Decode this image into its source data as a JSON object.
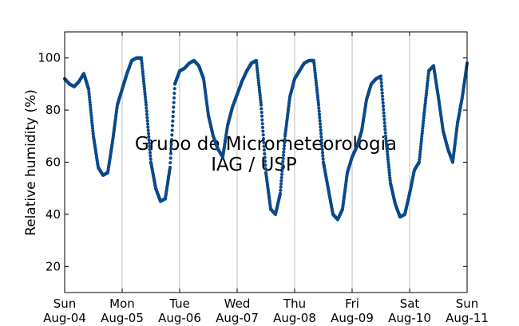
{
  "chart_data": {
    "type": "scatter",
    "title": "",
    "xlabel": "",
    "ylabel": "Relative humidity (%)",
    "watermark": [
      "Grupo de Micrometeorologia",
      "IAG / USP"
    ],
    "xlim": [
      "2019-08-04T00:00",
      "2019-08-11T00:00"
    ],
    "ylim": [
      10,
      110
    ],
    "y_ticks": [
      20,
      40,
      60,
      80,
      100
    ],
    "x_ticks": [
      {
        "day": "Sun",
        "date": "Aug-04"
      },
      {
        "day": "Mon",
        "date": "Aug-05"
      },
      {
        "day": "Tue",
        "date": "Aug-06"
      },
      {
        "day": "Wed",
        "date": "Aug-07"
      },
      {
        "day": "Thu",
        "date": "Aug-08"
      },
      {
        "day": "Fri",
        "date": "Aug-09"
      },
      {
        "day": "Sat",
        "date": "Aug-10"
      },
      {
        "day": "Sun",
        "date": "Aug-11"
      }
    ],
    "grid": "vertical",
    "marker_color": "#0a4a8a",
    "series": [
      {
        "x": [
          "2019-08-04T00:00",
          "2019-08-04T02:00",
          "2019-08-04T04:00",
          "2019-08-04T06:00",
          "2019-08-04T08:00",
          "2019-08-04T10:00",
          "2019-08-04T12:00",
          "2019-08-04T14:00",
          "2019-08-04T16:00",
          "2019-08-04T18:00",
          "2019-08-04T20:00",
          "2019-08-04T22:00",
          "2019-08-05T00:00",
          "2019-08-05T02:00",
          "2019-08-05T04:00",
          "2019-08-05T06:00",
          "2019-08-05T08:00",
          "2019-08-05T10:00",
          "2019-08-05T12:00",
          "2019-08-05T14:00",
          "2019-08-05T16:00",
          "2019-08-05T18:00",
          "2019-08-05T20:00",
          "2019-08-05T22:00",
          "2019-08-06T00:00",
          "2019-08-06T02:00",
          "2019-08-06T04:00",
          "2019-08-06T06:00",
          "2019-08-06T08:00",
          "2019-08-06T10:00",
          "2019-08-06T12:00",
          "2019-08-06T14:00",
          "2019-08-06T16:00",
          "2019-08-06T18:00",
          "2019-08-06T20:00",
          "2019-08-06T22:00",
          "2019-08-07T00:00",
          "2019-08-07T02:00",
          "2019-08-07T04:00",
          "2019-08-07T06:00",
          "2019-08-07T08:00",
          "2019-08-07T10:00",
          "2019-08-07T12:00",
          "2019-08-07T14:00",
          "2019-08-07T16:00",
          "2019-08-07T18:00",
          "2019-08-07T20:00",
          "2019-08-07T22:00",
          "2019-08-08T00:00",
          "2019-08-08T02:00",
          "2019-08-08T04:00",
          "2019-08-08T06:00",
          "2019-08-08T08:00",
          "2019-08-08T10:00",
          "2019-08-08T12:00",
          "2019-08-08T14:00",
          "2019-08-08T16:00",
          "2019-08-08T18:00",
          "2019-08-08T20:00",
          "2019-08-08T22:00",
          "2019-08-09T00:00",
          "2019-08-09T02:00",
          "2019-08-09T04:00",
          "2019-08-09T06:00",
          "2019-08-09T08:00",
          "2019-08-09T10:00",
          "2019-08-09T12:00",
          "2019-08-09T14:00",
          "2019-08-09T16:00",
          "2019-08-09T18:00",
          "2019-08-09T20:00",
          "2019-08-09T22:00",
          "2019-08-10T00:00",
          "2019-08-10T02:00",
          "2019-08-10T04:00",
          "2019-08-10T06:00",
          "2019-08-10T08:00",
          "2019-08-10T10:00",
          "2019-08-10T12:00",
          "2019-08-10T14:00",
          "2019-08-10T16:00",
          "2019-08-10T18:00",
          "2019-08-10T20:00",
          "2019-08-10T22:00",
          "2019-08-11T00:00"
        ],
        "values": [
          92,
          90,
          89,
          91,
          94,
          88,
          70,
          58,
          55,
          56,
          68,
          82,
          88,
          94,
          99,
          100,
          100,
          82,
          60,
          50,
          45,
          46,
          58,
          90,
          95,
          96,
          98,
          99,
          97,
          92,
          78,
          70,
          65,
          62,
          74,
          81,
          86,
          91,
          95,
          98,
          99,
          82,
          56,
          42,
          40,
          48,
          70,
          85,
          92,
          95,
          98,
          99,
          99,
          82,
          60,
          50,
          40,
          38,
          42,
          56,
          62,
          66,
          72,
          84,
          90,
          92,
          93,
          70,
          52,
          44,
          39,
          40,
          48,
          57,
          60,
          78,
          95,
          97,
          85,
          72,
          65,
          60,
          75,
          85,
          98
        ]
      }
    ]
  }
}
